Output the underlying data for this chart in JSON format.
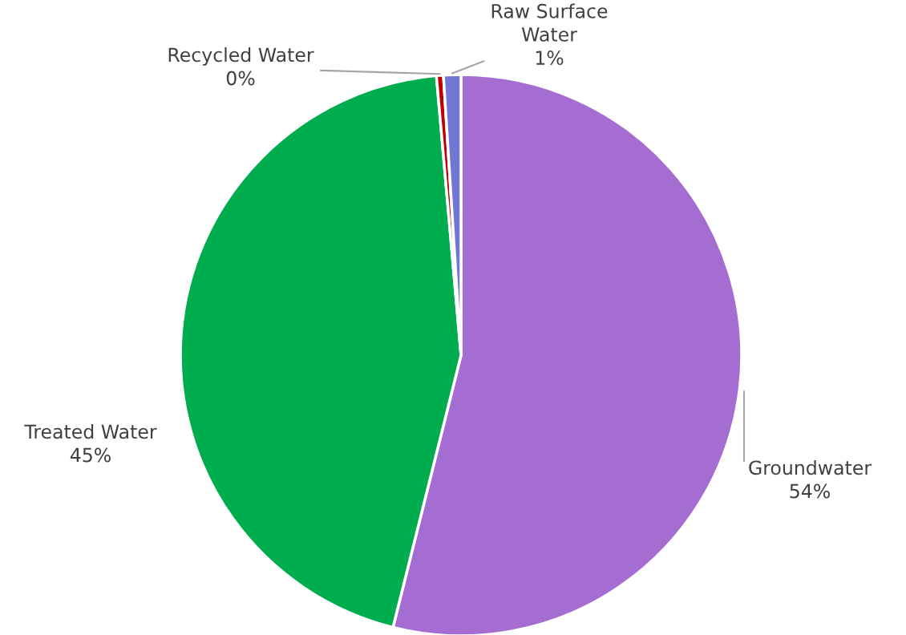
{
  "chart_data": {
    "type": "pie",
    "categories": [
      "Groundwater",
      "Treated Water",
      "Recycled Water",
      "Raw Surface\nWater"
    ],
    "values": [
      53.9,
      44.7,
      0.4,
      1.0
    ],
    "value_labels": [
      "54%",
      "45%",
      "0%",
      "1%"
    ],
    "colors": [
      "#a56dd2",
      "#00ad4e",
      "#c00000",
      "#7177d2"
    ],
    "legend": false
  }
}
